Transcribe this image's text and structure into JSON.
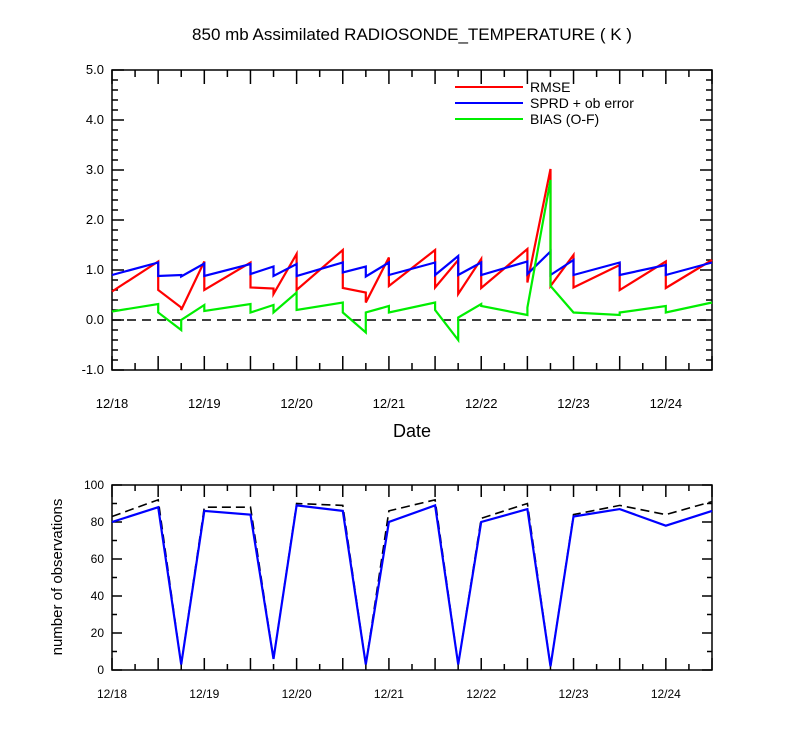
{
  "chart_data": [
    {
      "type": "line",
      "title": "850 mb Assimilated RADIOSONDE_TEMPERATURE ( K )",
      "xlabel": "Date",
      "ylabel": "",
      "x_unit": "day",
      "xlim": [
        18,
        24.5
      ],
      "ylim": [
        -1.0,
        5.0
      ],
      "xtick_values": [
        18,
        19,
        20,
        21,
        22,
        23,
        24
      ],
      "xtick_labels": [
        "12/18",
        "12/19",
        "12/20",
        "12/21",
        "12/22",
        "12/23",
        "12/24"
      ],
      "ytick_values": [
        -1.0,
        0.0,
        1.0,
        2.0,
        3.0,
        4.0,
        5.0
      ],
      "ytick_labels": [
        "-1.0",
        "0.0",
        "1.0",
        "2.0",
        "3.0",
        "4.0",
        "5.0"
      ],
      "reference_line": {
        "y": 0.0,
        "style": "dashed",
        "color": "#000000"
      },
      "legend_position": "top-right",
      "series": [
        {
          "name": "RMSE",
          "color": "#ff0000",
          "points": [
            [
              18,
              0.57
            ],
            [
              18.5,
              1.17
            ],
            [
              18.5,
              0.6
            ],
            [
              18.75,
              0.25
            ],
            [
              18.75,
              0.2
            ],
            [
              19,
              1.17
            ],
            [
              19,
              0.6
            ],
            [
              19.5,
              1.15
            ],
            [
              19.5,
              0.65
            ],
            [
              19.75,
              0.63
            ],
            [
              19.75,
              0.52
            ],
            [
              20,
              1.32
            ],
            [
              20,
              0.6
            ],
            [
              20.5,
              1.4
            ],
            [
              20.5,
              0.64
            ],
            [
              20.75,
              0.55
            ],
            [
              20.75,
              0.35
            ],
            [
              21,
              1.25
            ],
            [
              21,
              0.68
            ],
            [
              21.5,
              1.4
            ],
            [
              21.5,
              0.65
            ],
            [
              21.75,
              1.2
            ],
            [
              21.75,
              0.52
            ],
            [
              22,
              1.22
            ],
            [
              22,
              0.64
            ],
            [
              22.5,
              1.42
            ],
            [
              22.5,
              0.75
            ],
            [
              22.75,
              3.02
            ],
            [
              22.75,
              0.68
            ],
            [
              23,
              1.3
            ],
            [
              23,
              0.65
            ],
            [
              23.5,
              1.1
            ],
            [
              23.5,
              0.6
            ],
            [
              24,
              1.17
            ],
            [
              24,
              0.64
            ],
            [
              24.5,
              1.2
            ]
          ]
        },
        {
          "name": "SPRD + ob error",
          "color": "#0000ff",
          "points": [
            [
              18,
              0.9
            ],
            [
              18.5,
              1.15
            ],
            [
              18.5,
              0.88
            ],
            [
              18.75,
              0.9
            ],
            [
              18.75,
              0.87
            ],
            [
              19,
              1.13
            ],
            [
              19,
              0.88
            ],
            [
              19.5,
              1.12
            ],
            [
              19.5,
              0.92
            ],
            [
              19.75,
              1.07
            ],
            [
              19.75,
              0.88
            ],
            [
              20,
              1.12
            ],
            [
              20,
              0.88
            ],
            [
              20.5,
              1.15
            ],
            [
              20.5,
              0.95
            ],
            [
              20.75,
              1.07
            ],
            [
              20.75,
              0.87
            ],
            [
              21,
              1.15
            ],
            [
              21,
              0.9
            ],
            [
              21.5,
              1.15
            ],
            [
              21.5,
              0.9
            ],
            [
              21.75,
              1.28
            ],
            [
              21.75,
              0.9
            ],
            [
              22,
              1.15
            ],
            [
              22,
              0.9
            ],
            [
              22.5,
              1.17
            ],
            [
              22.5,
              0.92
            ],
            [
              22.75,
              1.37
            ],
            [
              22.75,
              0.9
            ],
            [
              23,
              1.2
            ],
            [
              23,
              0.9
            ],
            [
              23.5,
              1.15
            ],
            [
              23.5,
              0.9
            ],
            [
              24,
              1.1
            ],
            [
              24,
              0.9
            ],
            [
              24.5,
              1.15
            ]
          ]
        },
        {
          "name": "BIAS (O-F)",
          "color": "#00ee00",
          "points": [
            [
              18,
              0.17
            ],
            [
              18.5,
              0.32
            ],
            [
              18.5,
              0.15
            ],
            [
              18.75,
              -0.2
            ],
            [
              18.75,
              0.0
            ],
            [
              19,
              0.3
            ],
            [
              19,
              0.18
            ],
            [
              19.5,
              0.32
            ],
            [
              19.5,
              0.15
            ],
            [
              19.75,
              0.3
            ],
            [
              19.75,
              0.15
            ],
            [
              20,
              0.55
            ],
            [
              20,
              0.2
            ],
            [
              20.5,
              0.35
            ],
            [
              20.5,
              0.15
            ],
            [
              20.75,
              -0.25
            ],
            [
              20.75,
              0.15
            ],
            [
              21,
              0.28
            ],
            [
              21,
              0.15
            ],
            [
              21.5,
              0.35
            ],
            [
              21.5,
              0.2
            ],
            [
              21.75,
              -0.4
            ],
            [
              21.75,
              0.05
            ],
            [
              22,
              0.32
            ],
            [
              22,
              0.28
            ],
            [
              22.5,
              0.1
            ],
            [
              22.5,
              0.25
            ],
            [
              22.75,
              2.8
            ],
            [
              22.75,
              0.68
            ],
            [
              23,
              0.15
            ],
            [
              23,
              0.15
            ],
            [
              23.5,
              0.1
            ],
            [
              23.5,
              0.15
            ],
            [
              24,
              0.28
            ],
            [
              24,
              0.15
            ],
            [
              24.5,
              0.35
            ]
          ]
        }
      ]
    },
    {
      "type": "line",
      "title": "",
      "xlabel": "",
      "ylabel": "number of observations",
      "x_unit": "day",
      "xlim": [
        18,
        24.5
      ],
      "ylim": [
        0,
        100
      ],
      "xtick_values": [
        18,
        19,
        20,
        21,
        22,
        23,
        24
      ],
      "xtick_labels": [
        "12/18",
        "12/19",
        "12/20",
        "12/21",
        "12/22",
        "12/23",
        "12/24"
      ],
      "ytick_values": [
        0,
        20,
        40,
        60,
        80,
        100
      ],
      "ytick_labels": [
        "0",
        "20",
        "40",
        "60",
        "80",
        "100"
      ],
      "series": [
        {
          "color": "#000000",
          "style": "dashed",
          "points": [
            [
              18,
              83
            ],
            [
              18.5,
              92
            ],
            [
              18.75,
              3
            ],
            [
              19,
              88
            ],
            [
              19.5,
              88
            ],
            [
              19.75,
              6
            ],
            [
              20,
              90
            ],
            [
              20.5,
              89
            ],
            [
              20.75,
              3
            ],
            [
              21,
              86
            ],
            [
              21.5,
              92
            ],
            [
              21.75,
              3
            ],
            [
              22,
              82
            ],
            [
              22.5,
              90
            ],
            [
              22.75,
              2
            ],
            [
              23,
              84
            ],
            [
              23.5,
              89
            ],
            [
              24,
              84
            ],
            [
              24.5,
              91
            ]
          ]
        },
        {
          "color": "#0000ff",
          "style": "solid",
          "points": [
            [
              18,
              80
            ],
            [
              18.5,
              88
            ],
            [
              18.75,
              3
            ],
            [
              19,
              86
            ],
            [
              19.5,
              84
            ],
            [
              19.75,
              6
            ],
            [
              20,
              89
            ],
            [
              20.5,
              86
            ],
            [
              20.75,
              3
            ],
            [
              21,
              80
            ],
            [
              21.5,
              89
            ],
            [
              21.75,
              3
            ],
            [
              22,
              80
            ],
            [
              22.5,
              87
            ],
            [
              22.75,
              2
            ],
            [
              23,
              83
            ],
            [
              23.5,
              87
            ],
            [
              24,
              78
            ],
            [
              24.5,
              86
            ]
          ]
        }
      ]
    }
  ]
}
